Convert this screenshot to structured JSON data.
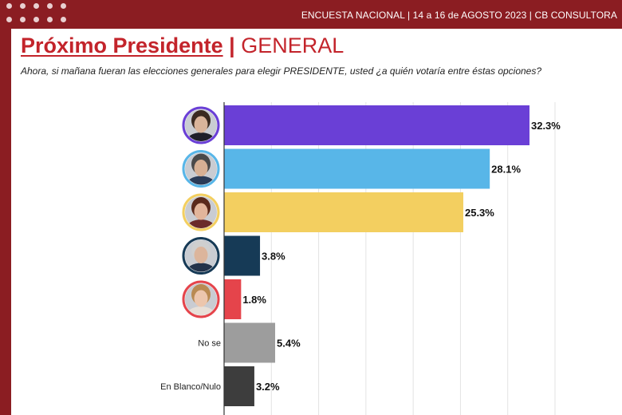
{
  "header": {
    "survey_info": "ENCUESTA NACIONAL | 14 a 16 de AGOSTO 2023 | CB CONSULTORA"
  },
  "title": {
    "main": "Próximo Presidente",
    "separator": "|",
    "sub": "GENERAL"
  },
  "question": "Ahora, si mañana fueran las elecciones generales para elegir PRESIDENTE, usted ¿a quién votaría entre éstas opciones?",
  "colors": {
    "brand_red": "#c3242b",
    "frame": "#8b1d22"
  },
  "chart_data": {
    "type": "bar",
    "orientation": "horizontal",
    "title": "Próximo Presidente | GENERAL",
    "xlim": [
      0,
      35
    ],
    "grid": true,
    "categories": [
      {
        "label": "",
        "kind": "photo",
        "icon": "candidate-1-photo-icon",
        "value": 32.3,
        "value_label": "32.3%",
        "color": "#6a3fd6",
        "ring": "#6a3fd6",
        "skin": "#d9b49a",
        "hair": "#3a2a20",
        "shirt": "#1f1f2a"
      },
      {
        "label": "",
        "kind": "photo",
        "icon": "candidate-2-photo-icon",
        "value": 28.1,
        "value_label": "28.1%",
        "color": "#58b6e8",
        "ring": "#58b6e8",
        "skin": "#d7b094",
        "hair": "#4a4a4a",
        "shirt": "#2a3b57"
      },
      {
        "label": "",
        "kind": "photo",
        "icon": "candidate-3-photo-icon",
        "value": 25.3,
        "value_label": "25.3%",
        "color": "#f3cf60",
        "ring": "#f3cf60",
        "skin": "#e2b59b",
        "hair": "#5a2a1c",
        "shirt": "#6b2b2b"
      },
      {
        "label": "",
        "kind": "photo",
        "icon": "candidate-4-photo-icon",
        "value": 3.8,
        "value_label": "3.8%",
        "color": "#163a56",
        "ring": "#163a56",
        "skin": "#dcb59c",
        "hair": "#cfcfcf",
        "shirt": "#22324a"
      },
      {
        "label": "",
        "kind": "photo",
        "icon": "candidate-5-photo-icon",
        "value": 1.8,
        "value_label": "1.8%",
        "color": "#e5444b",
        "ring": "#e5444b",
        "skin": "#ecc6ad",
        "hair": "#b98a52",
        "shirt": "#e8e0d8"
      },
      {
        "label": "No se",
        "kind": "text",
        "value": 5.4,
        "value_label": "5.4%",
        "color": "#9d9d9d"
      },
      {
        "label": "En Blanco/Nulo",
        "kind": "text",
        "value": 3.2,
        "value_label": "3.2%",
        "color": "#3d3d3d"
      }
    ]
  }
}
